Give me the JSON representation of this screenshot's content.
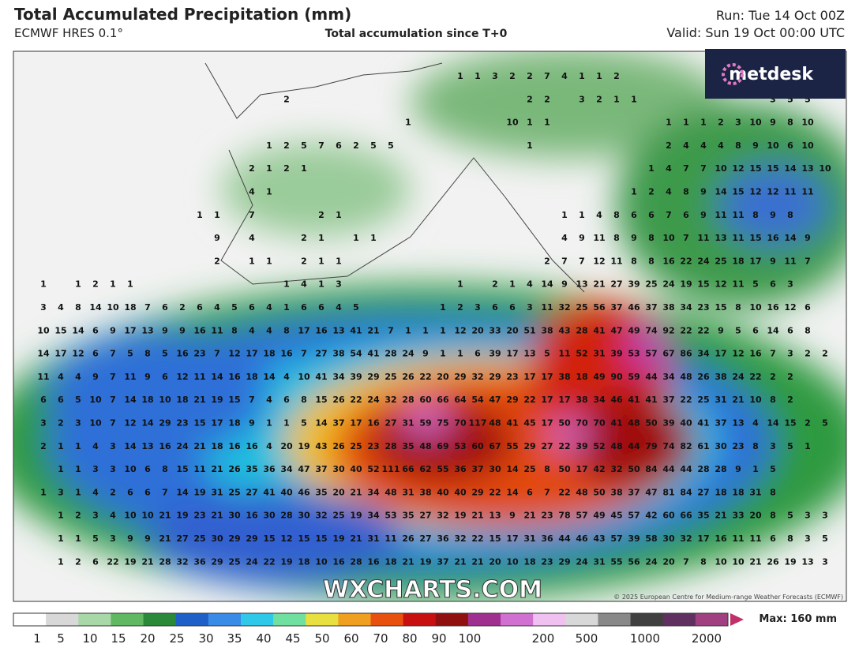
{
  "header": {
    "title": "Total Accumulated Precipitation (mm)",
    "model": "ECMWF HRES 0.1°",
    "subtitle": "Total accumulation since T+0",
    "run": "Run: Tue 14 Oct 00Z",
    "valid": "Valid: Sun 19 Oct 00:00 UTC"
  },
  "logo": "metdesk",
  "watermark": "WXCHARTS.COM",
  "copyright": "© 2025 European Centre for Medium-range Weather Forecasts (ECMWF)",
  "colorbar": {
    "labels": [
      1,
      5,
      10,
      15,
      20,
      25,
      30,
      35,
      40,
      45,
      50,
      60,
      70,
      80,
      90,
      100,
      200,
      500,
      1000,
      2000
    ],
    "max": "Max: 160 mm"
  },
  "grid_rows": [
    [
      null,
      null,
      null,
      null,
      null,
      null,
      null,
      null,
      null,
      null,
      null,
      null,
      null,
      null,
      null,
      null,
      null,
      null,
      null,
      null,
      null,
      null,
      null,
      null,
      1,
      1,
      3,
      2,
      2,
      7,
      4,
      1,
      1,
      2
    ],
    [
      null,
      null,
      null,
      null,
      null,
      null,
      null,
      null,
      null,
      null,
      null,
      null,
      null,
      null,
      2,
      null,
      null,
      null,
      null,
      null,
      null,
      null,
      null,
      null,
      null,
      null,
      null,
      null,
      2,
      2,
      null,
      3,
      2,
      1,
      1,
      null,
      null,
      null,
      null,
      null,
      null,
      null,
      3,
      5,
      5
    ],
    [
      null,
      null,
      null,
      null,
      null,
      null,
      null,
      null,
      null,
      null,
      null,
      null,
      null,
      null,
      null,
      null,
      null,
      null,
      null,
      null,
      null,
      1,
      null,
      null,
      null,
      null,
      null,
      10,
      1,
      1,
      null,
      null,
      null,
      null,
      null,
      null,
      1,
      1,
      1,
      2,
      3,
      10,
      9,
      8,
      10
    ],
    [
      null,
      null,
      null,
      null,
      null,
      null,
      null,
      null,
      null,
      null,
      null,
      null,
      null,
      1,
      2,
      5,
      7,
      6,
      2,
      5,
      5,
      null,
      null,
      null,
      null,
      null,
      null,
      null,
      1,
      null,
      null,
      null,
      null,
      null,
      null,
      null,
      2,
      4,
      4,
      4,
      8,
      9,
      10,
      6,
      10
    ],
    [
      null,
      null,
      null,
      null,
      null,
      null,
      null,
      null,
      null,
      null,
      null,
      null,
      2,
      1,
      2,
      1,
      null,
      null,
      null,
      null,
      null,
      null,
      null,
      null,
      null,
      null,
      null,
      null,
      null,
      null,
      null,
      null,
      null,
      null,
      null,
      1,
      4,
      7,
      7,
      10,
      12,
      15,
      15,
      14,
      13,
      10
    ],
    [
      null,
      null,
      null,
      null,
      null,
      null,
      null,
      null,
      null,
      null,
      null,
      null,
      4,
      1,
      null,
      null,
      null,
      null,
      null,
      null,
      null,
      null,
      null,
      null,
      null,
      null,
      null,
      null,
      null,
      null,
      null,
      null,
      null,
      null,
      1,
      2,
      4,
      8,
      9,
      14,
      15,
      12,
      12,
      11,
      11
    ],
    [
      null,
      null,
      null,
      null,
      null,
      null,
      null,
      null,
      null,
      1,
      1,
      null,
      7,
      null,
      null,
      null,
      2,
      1,
      null,
      null,
      null,
      null,
      null,
      null,
      null,
      null,
      null,
      null,
      null,
      null,
      1,
      1,
      4,
      8,
      6,
      6,
      7,
      6,
      9,
      11,
      11,
      8,
      9,
      8
    ],
    [
      null,
      null,
      null,
      null,
      null,
      null,
      null,
      null,
      null,
      null,
      9,
      null,
      4,
      null,
      null,
      2,
      1,
      null,
      1,
      1,
      null,
      null,
      null,
      null,
      null,
      null,
      null,
      null,
      null,
      null,
      4,
      9,
      11,
      8,
      9,
      8,
      10,
      7,
      11,
      13,
      11,
      15,
      16,
      14,
      9
    ],
    [
      null,
      null,
      null,
      null,
      null,
      null,
      null,
      null,
      null,
      null,
      2,
      null,
      1,
      1,
      null,
      2,
      1,
      1,
      null,
      null,
      null,
      null,
      null,
      null,
      null,
      null,
      null,
      null,
      null,
      2,
      7,
      7,
      12,
      11,
      8,
      8,
      16,
      22,
      24,
      25,
      18,
      17,
      9,
      11,
      7
    ],
    [
      1,
      null,
      1,
      2,
      1,
      1,
      null,
      null,
      null,
      null,
      null,
      null,
      null,
      null,
      1,
      4,
      1,
      3,
      null,
      null,
      null,
      null,
      null,
      null,
      1,
      null,
      2,
      1,
      4,
      14,
      9,
      13,
      21,
      27,
      39,
      25,
      24,
      19,
      15,
      12,
      11,
      5,
      6,
      3
    ],
    [
      3,
      4,
      8,
      14,
      10,
      18,
      7,
      6,
      2,
      6,
      4,
      5,
      6,
      4,
      1,
      6,
      6,
      4,
      5,
      null,
      null,
      null,
      null,
      1,
      2,
      3,
      6,
      6,
      3,
      11,
      32,
      25,
      56,
      37,
      46,
      37,
      38,
      34,
      23,
      15,
      8,
      10,
      16,
      12,
      6
    ],
    [
      10,
      15,
      14,
      6,
      9,
      17,
      13,
      9,
      9,
      16,
      11,
      8,
      4,
      4,
      8,
      17,
      16,
      13,
      41,
      21,
      7,
      1,
      1,
      1,
      12,
      20,
      33,
      20,
      51,
      38,
      43,
      28,
      41,
      47,
      49,
      74,
      92,
      22,
      22,
      9,
      5,
      6,
      14,
      6,
      8
    ],
    [
      14,
      17,
      12,
      6,
      7,
      5,
      8,
      5,
      16,
      23,
      7,
      12,
      17,
      18,
      16,
      7,
      27,
      38,
      54,
      41,
      28,
      24,
      9,
      1,
      1,
      6,
      39,
      17,
      13,
      5,
      11,
      52,
      31,
      39,
      53,
      57,
      67,
      86,
      34,
      17,
      12,
      16,
      7,
      3,
      2,
      2
    ],
    [
      11,
      4,
      4,
      9,
      7,
      11,
      9,
      6,
      12,
      11,
      14,
      16,
      18,
      14,
      4,
      10,
      41,
      34,
      39,
      29,
      25,
      26,
      22,
      20,
      29,
      32,
      29,
      23,
      17,
      17,
      38,
      18,
      49,
      90,
      59,
      44,
      34,
      48,
      26,
      38,
      24,
      22,
      2,
      2
    ],
    [
      6,
      6,
      5,
      10,
      7,
      14,
      18,
      10,
      18,
      21,
      19,
      15,
      7,
      4,
      6,
      8,
      15,
      26,
      22,
      24,
      32,
      28,
      60,
      66,
      64,
      54,
      47,
      29,
      22,
      17,
      17,
      38,
      34,
      46,
      41,
      41,
      37,
      22,
      25,
      31,
      21,
      10,
      8,
      2
    ],
    [
      3,
      2,
      3,
      10,
      7,
      12,
      14,
      29,
      23,
      15,
      17,
      18,
      9,
      1,
      1,
      5,
      14,
      37,
      17,
      16,
      27,
      31,
      59,
      75,
      70,
      117,
      48,
      41,
      45,
      17,
      50,
      70,
      70,
      41,
      48,
      50,
      39,
      40,
      41,
      37,
      13,
      4,
      14,
      15,
      2,
      5
    ],
    [
      2,
      1,
      1,
      4,
      3,
      14,
      13,
      16,
      24,
      21,
      18,
      16,
      16,
      4,
      20,
      19,
      43,
      26,
      25,
      23,
      28,
      35,
      48,
      69,
      53,
      60,
      67,
      55,
      29,
      27,
      22,
      39,
      52,
      48,
      44,
      79,
      74,
      82,
      61,
      30,
      23,
      8,
      3,
      5,
      1
    ],
    [
      null,
      1,
      1,
      3,
      3,
      10,
      6,
      8,
      15,
      11,
      21,
      26,
      35,
      36,
      34,
      47,
      37,
      30,
      40,
      52,
      111,
      66,
      62,
      55,
      36,
      37,
      30,
      14,
      25,
      8,
      50,
      17,
      42,
      32,
      50,
      84,
      44,
      44,
      28,
      28,
      9,
      1,
      5
    ],
    [
      1,
      3,
      1,
      4,
      2,
      6,
      6,
      7,
      14,
      19,
      31,
      25,
      27,
      41,
      40,
      46,
      35,
      20,
      21,
      34,
      48,
      31,
      38,
      40,
      40,
      29,
      22,
      14,
      6,
      7,
      22,
      48,
      50,
      38,
      37,
      47,
      81,
      84,
      27,
      18,
      18,
      31,
      8
    ],
    [
      null,
      1,
      2,
      3,
      4,
      10,
      10,
      21,
      19,
      23,
      21,
      30,
      16,
      30,
      28,
      30,
      32,
      25,
      19,
      34,
      53,
      35,
      27,
      32,
      19,
      21,
      13,
      9,
      21,
      23,
      78,
      57,
      49,
      45,
      57,
      42,
      60,
      66,
      35,
      21,
      33,
      20,
      8,
      5,
      3,
      3
    ],
    [
      null,
      1,
      1,
      5,
      3,
      9,
      9,
      21,
      27,
      25,
      30,
      29,
      29,
      15,
      12,
      15,
      15,
      19,
      21,
      31,
      11,
      26,
      27,
      36,
      32,
      22,
      15,
      17,
      31,
      36,
      44,
      46,
      43,
      57,
      39,
      58,
      30,
      32,
      17,
      16,
      11,
      11,
      6,
      8,
      3,
      5
    ],
    [
      null,
      1,
      2,
      6,
      22,
      19,
      21,
      28,
      32,
      36,
      29,
      25,
      24,
      22,
      19,
      18,
      10,
      16,
      28,
      16,
      18,
      21,
      19,
      37,
      21,
      21,
      20,
      10,
      18,
      23,
      29,
      24,
      31,
      55,
      56,
      24,
      20,
      7,
      8,
      10,
      10,
      21,
      26,
      19,
      13,
      3
    ]
  ]
}
